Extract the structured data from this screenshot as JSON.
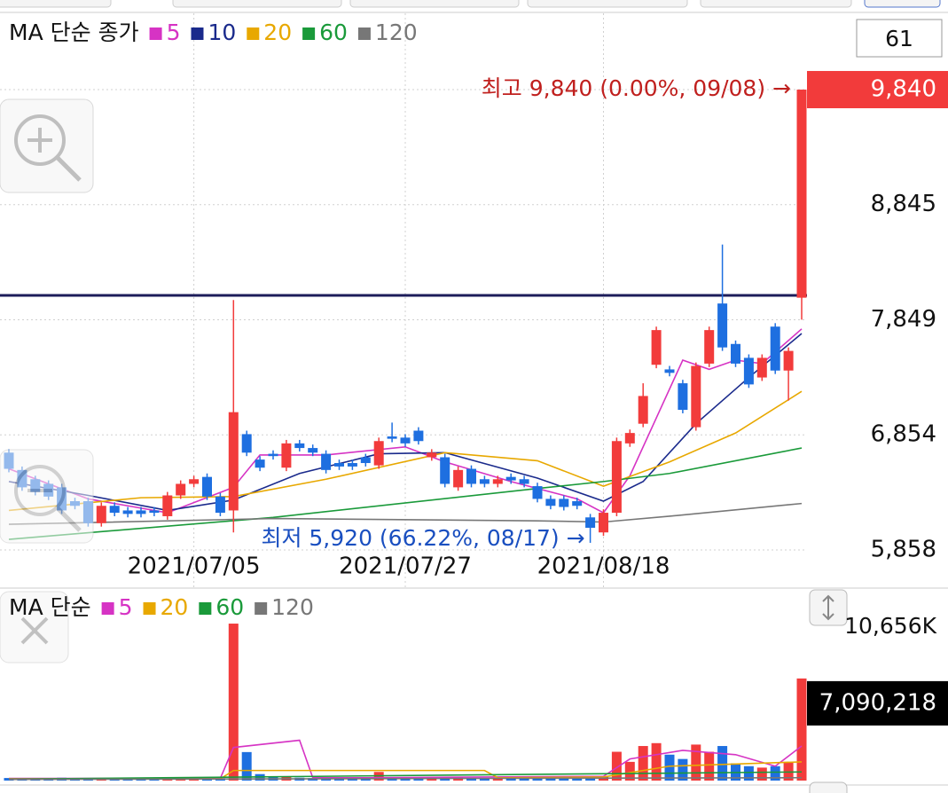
{
  "chart_data": [
    {
      "type": "candlestick",
      "title": "MA 단순 종가",
      "visible_count": 61,
      "categories": [
        null,
        null,
        null,
        null,
        null,
        null,
        null,
        null,
        null,
        null,
        null,
        null,
        null,
        null,
        "2021/07/05",
        null,
        null,
        null,
        null,
        null,
        null,
        null,
        null,
        null,
        null,
        null,
        null,
        null,
        null,
        null,
        "2021/07/27",
        null,
        null,
        null,
        null,
        null,
        null,
        null,
        null,
        null,
        null,
        null,
        null,
        null,
        null,
        "2021/08/18",
        null,
        null,
        null,
        null,
        null,
        null,
        null,
        null,
        null,
        null,
        null,
        null,
        null,
        null,
        null
      ],
      "open": [
        6700,
        6550,
        6470,
        6430,
        6400,
        6280,
        6280,
        6090,
        6240,
        6200,
        6200,
        6200,
        6150,
        6330,
        6430,
        6490,
        6320,
        6200,
        6860,
        6640,
        6690,
        6570,
        6780,
        6740,
        6690,
        6610,
        6610,
        6660,
        6590,
        6840,
        6830,
        6890,
        6660,
        6660,
        6400,
        6560,
        6470,
        6430,
        6490,
        6470,
        6410,
        6300,
        6300,
        6280,
        6140,
        6010,
        6180,
        6780,
        6950,
        7460,
        7420,
        7300,
        6920,
        7470,
        7990,
        7640,
        7520,
        7350,
        7790,
        7410,
        8040
      ],
      "high": [
        6730,
        6580,
        6500,
        6460,
        6430,
        6310,
        6310,
        6270,
        6270,
        6230,
        6230,
        6230,
        6360,
        6460,
        6500,
        6520,
        6350,
        8020,
        6890,
        6670,
        6720,
        6810,
        6810,
        6770,
        6720,
        6640,
        6640,
        6690,
        6830,
        6960,
        6860,
        6920,
        6730,
        6690,
        6580,
        6590,
        6500,
        6500,
        6520,
        6500,
        6440,
        6330,
        6330,
        6310,
        6170,
        6210,
        6830,
        6900,
        7300,
        7790,
        7450,
        7330,
        7480,
        7790,
        8500,
        7670,
        7550,
        7550,
        7820,
        7610,
        9840
      ],
      "low": [
        6530,
        6370,
        6330,
        6290,
        6170,
        6210,
        6060,
        6060,
        6150,
        6140,
        6140,
        6150,
        6120,
        6300,
        6400,
        6290,
        6150,
        6010,
        6670,
        6540,
        6640,
        6540,
        6710,
        6670,
        6520,
        6550,
        6550,
        6580,
        6560,
        6790,
        6750,
        6770,
        6630,
        6400,
        6370,
        6400,
        6400,
        6400,
        6430,
        6400,
        6270,
        6210,
        6200,
        6210,
        5920,
        5980,
        6150,
        6750,
        6920,
        7430,
        7360,
        7040,
        6890,
        7440,
        7580,
        7440,
        7260,
        7320,
        7380,
        7150,
        7850
      ],
      "close": [
        6560,
        6400,
        6360,
        6320,
        6200,
        6240,
        6090,
        6240,
        6180,
        6170,
        6170,
        6180,
        6330,
        6430,
        6470,
        6320,
        6180,
        7050,
        6700,
        6570,
        6670,
        6780,
        6740,
        6700,
        6550,
        6580,
        6580,
        6610,
        6800,
        6820,
        6780,
        6800,
        6700,
        6430,
        6550,
        6430,
        6430,
        6470,
        6460,
        6430,
        6300,
        6240,
        6230,
        6240,
        6050,
        6180,
        6800,
        6870,
        7190,
        7760,
        7390,
        7070,
        7450,
        7760,
        7610,
        7470,
        7290,
        7520,
        7410,
        7580,
        9840
      ],
      "up_color": "#f23b3b",
      "down_color": "#1e6fe0",
      "series": [
        {
          "name": "5",
          "color": "#d633c4",
          "x": [
            0,
            6,
            12,
            17,
            19,
            24,
            30,
            33,
            38,
            43,
            45,
            47,
            49,
            51,
            53,
            55,
            57,
            60
          ],
          "values": [
            6560,
            6300,
            6180,
            6400,
            6680,
            6680,
            6750,
            6620,
            6450,
            6300,
            6180,
            6500,
            7000,
            7500,
            7420,
            7500,
            7470,
            7770
          ]
        },
        {
          "name": "10",
          "color": "#1a2a8c",
          "x": [
            0,
            6,
            12,
            17,
            22,
            28,
            33,
            40,
            45,
            48,
            52,
            56,
            60
          ],
          "values": [
            6450,
            6330,
            6200,
            6290,
            6520,
            6690,
            6700,
            6480,
            6280,
            6450,
            6950,
            7350,
            7730
          ]
        },
        {
          "name": "20",
          "color": "#e8a800",
          "x": [
            0,
            10,
            17,
            24,
            33,
            40,
            45,
            50,
            55,
            60
          ],
          "values": [
            6200,
            6310,
            6320,
            6470,
            6700,
            6630,
            6410,
            6620,
            6870,
            7230
          ]
        },
        {
          "name": "60",
          "color": "#1a9a3a",
          "x": [
            0,
            20,
            40,
            45,
            50,
            60
          ],
          "values": [
            5950,
            6140,
            6390,
            6450,
            6520,
            6740
          ]
        },
        {
          "name": "120",
          "color": "#777777",
          "x": [
            0,
            20,
            40,
            45,
            50,
            60
          ],
          "values": [
            6080,
            6130,
            6110,
            6100,
            6150,
            6260
          ]
        }
      ],
      "ylim": [
        5536,
        10500
      ],
      "yticks": [
        {
          "value": 9840,
          "label": "9,840"
        },
        {
          "value": 8845,
          "label": "8,845"
        },
        {
          "value": 7849,
          "label": "7,849"
        },
        {
          "value": 6854,
          "label": "6,854"
        },
        {
          "value": 5858,
          "label": "5,858"
        }
      ],
      "reference_line": {
        "value": 8060,
        "color": "#1c1c5a"
      },
      "annotations": [
        {
          "text": "최고 9,840 (0.00%, 09/08) →",
          "color": "#c0201e"
        },
        {
          "text": "최저 5,920 (66.22%, 08/17) →",
          "color": "#1a4fc0"
        }
      ],
      "grid": true
    },
    {
      "type": "bar",
      "title": "MA 단순",
      "values": [
        180000,
        150000,
        160000,
        140000,
        200000,
        170000,
        180000,
        150000,
        120000,
        110000,
        100000,
        110000,
        180000,
        160000,
        140000,
        150000,
        170000,
        10900000,
        1980000,
        450000,
        250000,
        300000,
        200000,
        180000,
        220000,
        150000,
        140000,
        160000,
        600000,
        200000,
        180000,
        220000,
        190000,
        250000,
        230000,
        180000,
        150000,
        160000,
        140000,
        150000,
        170000,
        200000,
        180000,
        150000,
        300000,
        250000,
        2000000,
        1300000,
        2400000,
        2600000,
        1800000,
        1500000,
        2500000,
        2000000,
        2400000,
        1200000,
        1000000,
        900000,
        1000000,
        1300000,
        7090218
      ],
      "value_labels": [
        null,
        null,
        null,
        null,
        null,
        null,
        null,
        null,
        null,
        null,
        null,
        null,
        null,
        null,
        null,
        null,
        null,
        null,
        null,
        null,
        null,
        null,
        null,
        null,
        null,
        null,
        null,
        null,
        null,
        null,
        null,
        null,
        null,
        null,
        null,
        null,
        null,
        null,
        null,
        null,
        null,
        null,
        null,
        null,
        null,
        null,
        null,
        null,
        null,
        null,
        null,
        null,
        null,
        null,
        null,
        null,
        null,
        null,
        null,
        null,
        "7,090,218"
      ],
      "series": [
        {
          "name": "5",
          "color": "#d633c4",
          "x": [
            0,
            16,
            17,
            22,
            23,
            27,
            45,
            47,
            51,
            55,
            58,
            60
          ],
          "values": [
            150000,
            150000,
            2300000,
            2800000,
            200000,
            200000,
            300000,
            1500000,
            2100000,
            1800000,
            1000000,
            2400000
          ]
        },
        {
          "name": "20",
          "color": "#e8a800",
          "x": [
            0,
            16,
            17,
            36,
            37,
            45,
            50,
            60
          ],
          "values": [
            120000,
            120000,
            700000,
            700000,
            200000,
            250000,
            1000000,
            1300000
          ]
        },
        {
          "name": "60",
          "color": "#1a9a3a",
          "x": [
            0,
            60
          ],
          "values": [
            100000,
            600000
          ]
        },
        {
          "name": "120",
          "color": "#777777",
          "x": [
            0,
            60
          ],
          "values": [
            80000,
            200000
          ]
        }
      ],
      "ylim": [
        0,
        13243000
      ],
      "yticks": [
        {
          "value": 10656000,
          "label": "10,656K"
        }
      ]
    }
  ]
}
